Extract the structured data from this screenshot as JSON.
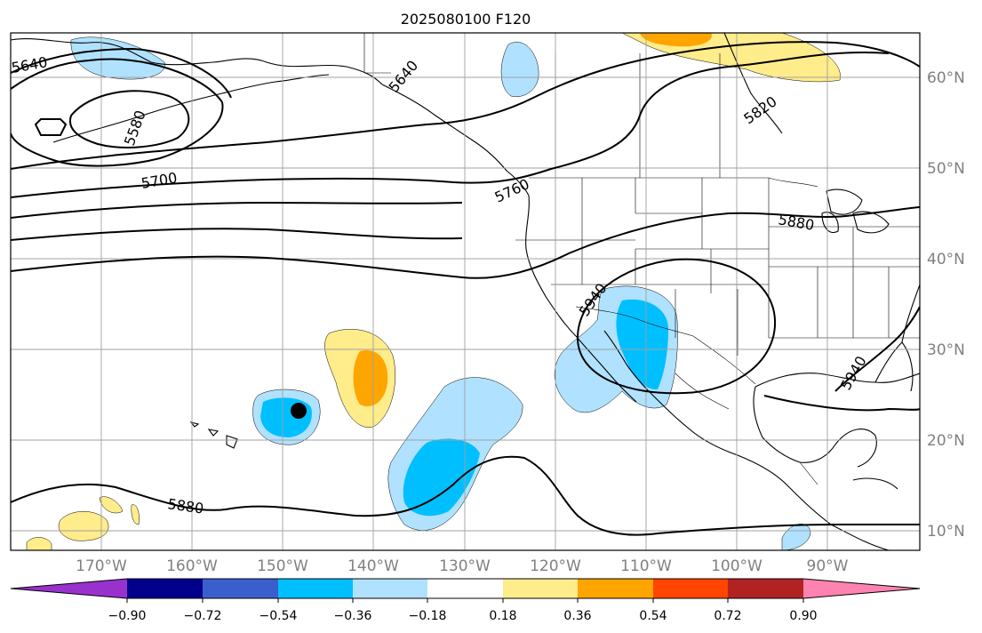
{
  "title": "2025080100 F120",
  "lat_labels": [
    "60°N",
    "50°N",
    "40°N",
    "30°N",
    "20°N",
    "10°N"
  ],
  "lon_labels": [
    "170°W",
    "160°W",
    "150°W",
    "140°W",
    "130°W",
    "120°W",
    "110°W",
    "100°W",
    "90°W"
  ],
  "contour_labels": [
    "5640",
    "5580",
    "5700",
    "5640",
    "5760",
    "5820",
    "5880",
    "5940",
    "5940",
    "5880"
  ],
  "colorbar": {
    "ticks": [
      "−0.90",
      "−0.72",
      "−0.54",
      "−0.36",
      "−0.18",
      "0.18",
      "0.36",
      "0.54",
      "0.72",
      "0.90"
    ],
    "colors": [
      "#9932cc",
      "#00008b",
      "#3a5fcd",
      "#00bfff",
      "#b0e2ff",
      "#ffffff",
      "#ffec8b",
      "#ffa500",
      "#ff4500",
      "#b22222",
      "#ff83b0"
    ]
  },
  "colors": {
    "gridline": "#a0a0a0",
    "contour": "#000000",
    "axis_label": "#808080"
  }
}
